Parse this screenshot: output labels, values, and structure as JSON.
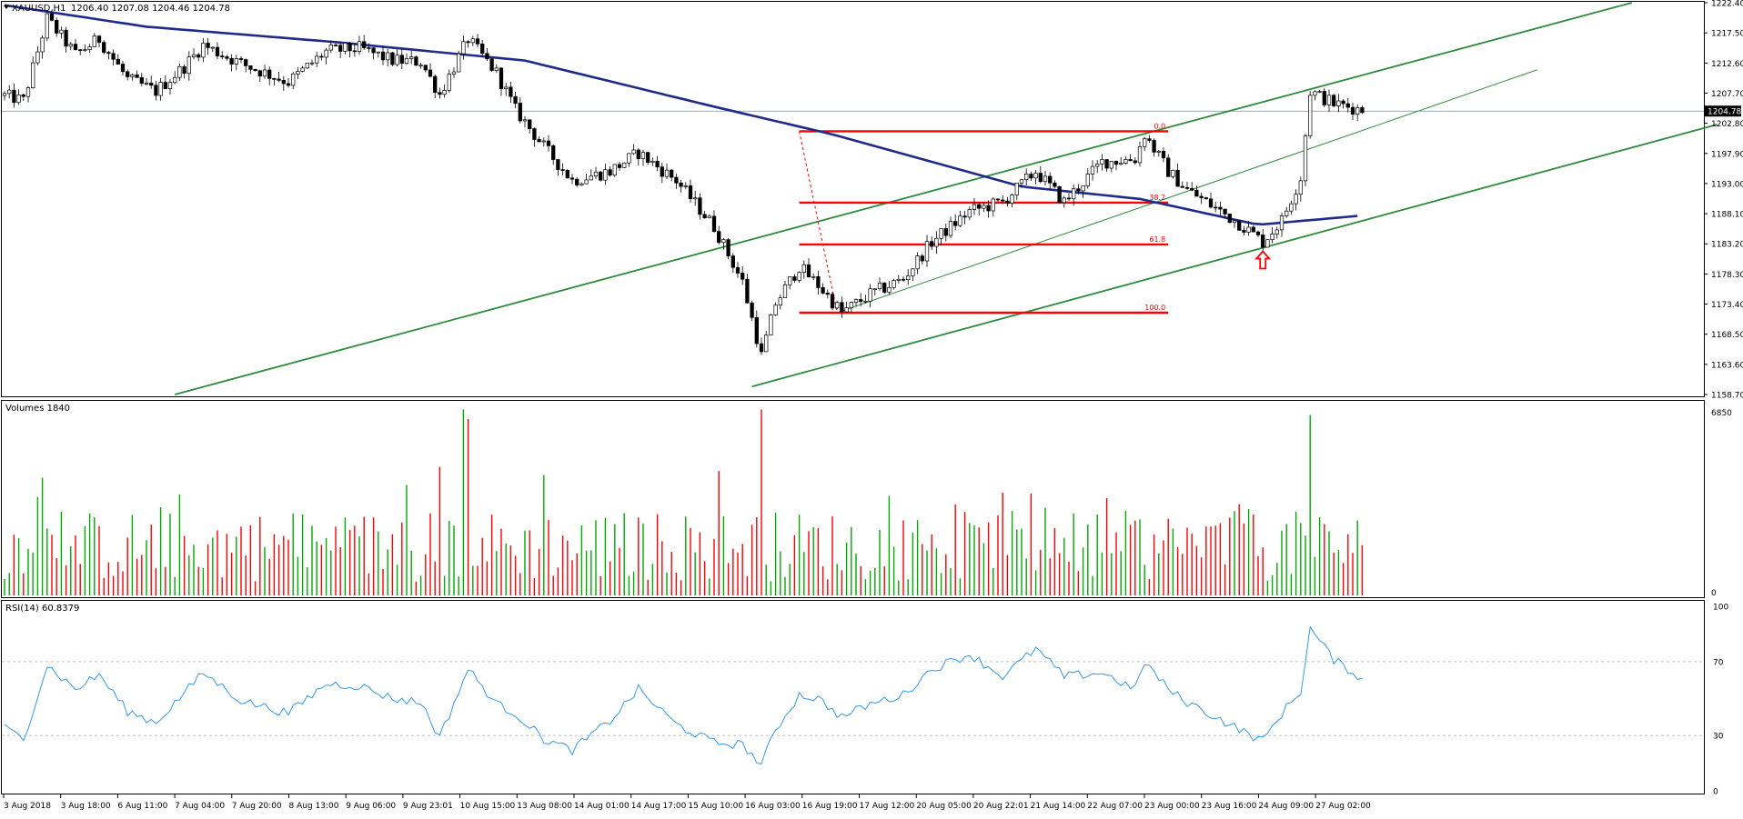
{
  "window": {
    "title": "XAUUSD,H1",
    "ohlc_text": "1206.40 1207.08 1204.46 1204.78"
  },
  "colors": {
    "background": "#ffffff",
    "frame": "#000000",
    "grid_dashed": "#c0c0c0",
    "bull_candle": "#00aa00",
    "bear_candle": "#ff0000",
    "moving_average": "#1f2a8a",
    "channel_lines": "#2e8b3c",
    "fib_lines": "#ff0000",
    "rsi_line": "#3399ee",
    "price_label_bg": "#000000",
    "price_label_fg": "#ffffff",
    "arrow": "#ff0000"
  },
  "chart_data": [
    {
      "type": "candlestick",
      "symbol": "XAUUSD",
      "timeframe": "H1",
      "header": "XAUUSD,H1 1206.40 1207.08 1204.46 1204.78",
      "ylim": [
        1158.7,
        1222.4
      ],
      "y_ticks": [
        "1222.40",
        "1217.50",
        "1212.60",
        "1207.70",
        "1202.80",
        "1197.90",
        "1193.00",
        "1188.10",
        "1183.20",
        "1178.30",
        "1173.40",
        "1168.50",
        "1163.60",
        "1158.70"
      ],
      "current_price": "1204.78",
      "x_ticks": [
        "3 Aug 2018",
        "3 Aug 18:00",
        "6 Aug 11:00",
        "7 Aug 04:00",
        "7 Aug 20:00",
        "8 Aug 13:00",
        "9 Aug 06:00",
        "9 Aug 23:01",
        "10 Aug 15:00",
        "13 Aug 08:00",
        "14 Aug 01:00",
        "14 Aug 17:00",
        "15 Aug 10:00",
        "16 Aug 03:00",
        "16 Aug 19:00",
        "17 Aug 12:00",
        "20 Aug 05:00",
        "20 Aug 22:01",
        "21 Aug 14:00",
        "22 Aug 07:00",
        "23 Aug 00:00",
        "23 Aug 16:00",
        "24 Aug 09:00",
        "27 Aug 02:00"
      ],
      "bar_count": 288,
      "price_path_anchors": [
        {
          "bar": 0,
          "price": 1207.3
        },
        {
          "bar": 4,
          "price": 1206.5
        },
        {
          "bar": 9,
          "price": 1219.8
        },
        {
          "bar": 15,
          "price": 1214.0
        },
        {
          "bar": 20,
          "price": 1216.5
        },
        {
          "bar": 26,
          "price": 1210.0
        },
        {
          "bar": 32,
          "price": 1208.0
        },
        {
          "bar": 38,
          "price": 1212.0
        },
        {
          "bar": 42,
          "price": 1215.5
        },
        {
          "bar": 50,
          "price": 1212.5
        },
        {
          "bar": 60,
          "price": 1209.5
        },
        {
          "bar": 68,
          "price": 1214.5
        },
        {
          "bar": 75,
          "price": 1215.0
        },
        {
          "bar": 82,
          "price": 1213.0
        },
        {
          "bar": 88,
          "price": 1212.8
        },
        {
          "bar": 92,
          "price": 1207.5
        },
        {
          "bar": 98,
          "price": 1216.5
        },
        {
          "bar": 104,
          "price": 1211.0
        },
        {
          "bar": 108,
          "price": 1205.0
        },
        {
          "bar": 114,
          "price": 1199.0
        },
        {
          "bar": 120,
          "price": 1193.5
        },
        {
          "bar": 128,
          "price": 1195.0
        },
        {
          "bar": 134,
          "price": 1198.0
        },
        {
          "bar": 142,
          "price": 1193.5
        },
        {
          "bar": 150,
          "price": 1186.0
        },
        {
          "bar": 156,
          "price": 1177.0
        },
        {
          "bar": 160,
          "price": 1165.0
        },
        {
          "bar": 163,
          "price": 1173.5
        },
        {
          "bar": 168,
          "price": 1179.5
        },
        {
          "bar": 172,
          "price": 1176.5
        },
        {
          "bar": 177,
          "price": 1172.0
        },
        {
          "bar": 183,
          "price": 1175.0
        },
        {
          "bar": 190,
          "price": 1177.5
        },
        {
          "bar": 196,
          "price": 1183.5
        },
        {
          "bar": 204,
          "price": 1188.5
        },
        {
          "bar": 211,
          "price": 1190.0
        },
        {
          "bar": 218,
          "price": 1195.0
        },
        {
          "bar": 224,
          "price": 1190.0
        },
        {
          "bar": 232,
          "price": 1196.5
        },
        {
          "bar": 239,
          "price": 1197.0
        },
        {
          "bar": 241,
          "price": 1201.0
        },
        {
          "bar": 246,
          "price": 1195.0
        },
        {
          "bar": 250,
          "price": 1192.0
        },
        {
          "bar": 256,
          "price": 1189.0
        },
        {
          "bar": 262,
          "price": 1186.0
        },
        {
          "bar": 266,
          "price": 1183.5
        },
        {
          "bar": 270,
          "price": 1187.0
        },
        {
          "bar": 274,
          "price": 1194.0
        },
        {
          "bar": 276,
          "price": 1208.0
        },
        {
          "bar": 281,
          "price": 1206.0
        },
        {
          "bar": 287,
          "price": 1205.0
        }
      ],
      "moving_average_anchors": [
        {
          "bar": 0,
          "price": 1222.0
        },
        {
          "bar": 30,
          "price": 1218.5
        },
        {
          "bar": 70,
          "price": 1216.0
        },
        {
          "bar": 110,
          "price": 1213.0
        },
        {
          "bar": 150,
          "price": 1205.5
        },
        {
          "bar": 175,
          "price": 1201.0
        },
        {
          "bar": 215,
          "price": 1192.5
        },
        {
          "bar": 240,
          "price": 1190.5
        },
        {
          "bar": 265,
          "price": 1186.3
        },
        {
          "bar": 287,
          "price": 1187.8
        }
      ],
      "trendlines": [
        {
          "kind": "channel_upper",
          "from": {
            "bar": 36,
            "price": 1158.7
          },
          "to": {
            "bar": 344,
            "price": 1222.4
          }
        },
        {
          "kind": "channel_lower",
          "from": {
            "bar": 158,
            "price": 1160.0
          },
          "to": {
            "bar": 362,
            "price": 1202.6
          }
        },
        {
          "kind": "minor_trend",
          "from": {
            "bar": 176,
            "price": 1172.0
          },
          "to": {
            "bar": 324,
            "price": 1211.5
          }
        },
        {
          "kind": "fib_retracement_range",
          "from": {
            "bar": 168,
            "price": 1201.5
          },
          "to": {
            "bar": 176,
            "price": 1172.0
          }
        }
      ],
      "fibonacci": {
        "x_range_bars": [
          168,
          246
        ],
        "levels": [
          {
            "label": "0.0",
            "price": 1201.5
          },
          {
            "label": "38.2",
            "price": 1189.9
          },
          {
            "label": "61.8",
            "price": 1183.1
          },
          {
            "label": "100.0",
            "price": 1172.0
          }
        ]
      },
      "annotation": {
        "type": "up-arrow",
        "bar": 266,
        "price": 1180.5
      }
    },
    {
      "type": "bar",
      "label": "Volumes 1840",
      "ylim": [
        0,
        6850
      ],
      "y_ticks": [
        "6850",
        "0"
      ],
      "last_value": 1840,
      "volume_peaks": [
        {
          "bar": 7,
          "value": 3600
        },
        {
          "bar": 8,
          "value": 4300
        },
        {
          "bar": 92,
          "value": 4700
        },
        {
          "bar": 97,
          "value": 6800
        },
        {
          "bar": 98,
          "value": 6450
        },
        {
          "bar": 114,
          "value": 4400
        },
        {
          "bar": 151,
          "value": 4550
        },
        {
          "bar": 160,
          "value": 6800
        },
        {
          "bar": 276,
          "value": 6600
        }
      ]
    },
    {
      "type": "line",
      "label": "RSI(14) 60.8379",
      "ylim": [
        0,
        100
      ],
      "y_ticks": [
        "100",
        "70",
        "30",
        "0"
      ],
      "reference_levels": [
        70,
        30
      ],
      "last_value": 60.8379,
      "rsi_anchors": [
        {
          "bar": 0,
          "value": 34
        },
        {
          "bar": 4,
          "value": 28
        },
        {
          "bar": 9,
          "value": 68
        },
        {
          "bar": 15,
          "value": 55
        },
        {
          "bar": 20,
          "value": 63
        },
        {
          "bar": 26,
          "value": 43
        },
        {
          "bar": 32,
          "value": 37
        },
        {
          "bar": 38,
          "value": 53
        },
        {
          "bar": 42,
          "value": 64
        },
        {
          "bar": 50,
          "value": 49
        },
        {
          "bar": 60,
          "value": 42
        },
        {
          "bar": 68,
          "value": 58
        },
        {
          "bar": 75,
          "value": 57
        },
        {
          "bar": 82,
          "value": 50
        },
        {
          "bar": 88,
          "value": 48
        },
        {
          "bar": 92,
          "value": 29
        },
        {
          "bar": 98,
          "value": 66
        },
        {
          "bar": 104,
          "value": 47
        },
        {
          "bar": 108,
          "value": 42
        },
        {
          "bar": 114,
          "value": 28
        },
        {
          "bar": 120,
          "value": 22
        },
        {
          "bar": 128,
          "value": 38
        },
        {
          "bar": 134,
          "value": 55
        },
        {
          "bar": 142,
          "value": 36
        },
        {
          "bar": 150,
          "value": 26
        },
        {
          "bar": 156,
          "value": 25
        },
        {
          "bar": 160,
          "value": 14
        },
        {
          "bar": 163,
          "value": 33
        },
        {
          "bar": 168,
          "value": 52
        },
        {
          "bar": 172,
          "value": 50
        },
        {
          "bar": 177,
          "value": 40
        },
        {
          "bar": 183,
          "value": 47
        },
        {
          "bar": 190,
          "value": 52
        },
        {
          "bar": 196,
          "value": 66
        },
        {
          "bar": 204,
          "value": 74
        },
        {
          "bar": 211,
          "value": 62
        },
        {
          "bar": 218,
          "value": 77
        },
        {
          "bar": 224,
          "value": 62
        },
        {
          "bar": 232,
          "value": 64
        },
        {
          "bar": 239,
          "value": 55
        },
        {
          "bar": 241,
          "value": 70
        },
        {
          "bar": 246,
          "value": 55
        },
        {
          "bar": 250,
          "value": 48
        },
        {
          "bar": 256,
          "value": 40
        },
        {
          "bar": 262,
          "value": 32
        },
        {
          "bar": 266,
          "value": 27
        },
        {
          "bar": 270,
          "value": 42
        },
        {
          "bar": 274,
          "value": 54
        },
        {
          "bar": 276,
          "value": 88
        },
        {
          "bar": 281,
          "value": 71
        },
        {
          "bar": 287,
          "value": 61
        }
      ]
    }
  ]
}
